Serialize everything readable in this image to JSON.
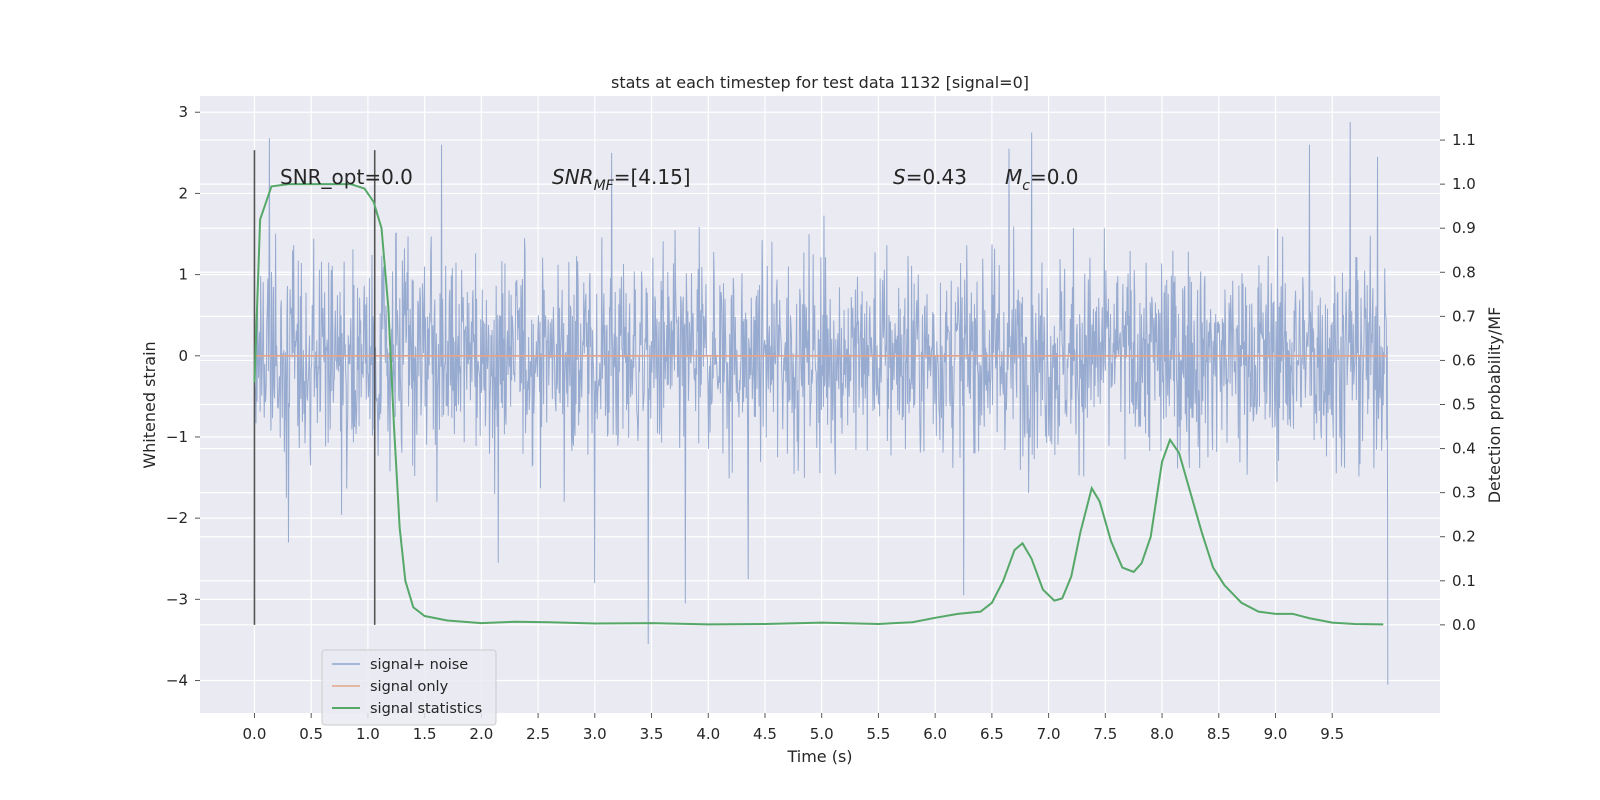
{
  "chart_data": {
    "type": "line",
    "title": "stats at each timestep for test data 1132 [signal=0]",
    "xlabel": "Time (s)",
    "ylabel": "Whitened strain",
    "y2label": "Detection probability/MF",
    "xlim": [
      -0.48,
      10.45
    ],
    "ylim": [
      -4.4,
      3.2
    ],
    "y2lim": [
      -0.2,
      1.2
    ],
    "x_ticks": [
      "0.0",
      "0.5",
      "1.0",
      "1.5",
      "2.0",
      "2.5",
      "3.0",
      "3.5",
      "4.0",
      "4.5",
      "5.0",
      "5.5",
      "6.0",
      "6.5",
      "7.0",
      "7.5",
      "8.0",
      "8.5",
      "9.0",
      "9.5"
    ],
    "y_ticks": [
      3,
      2,
      1,
      0,
      -1,
      -2,
      -3,
      -4
    ],
    "y_tick_labels": [
      "3",
      "2",
      "1",
      "0",
      "−1",
      "−2",
      "−3",
      "−4"
    ],
    "y2_ticks": [
      "1.1",
      "1.0",
      "0.9",
      "0.8",
      "0.7",
      "0.6",
      "0.5",
      "0.4",
      "0.3",
      "0.2",
      "0.1",
      "0.0"
    ],
    "grid": true,
    "legend_placement": "lower-left",
    "annotations": {
      "snr_opt": "SNR_opt=0.0",
      "snr_mf_sym": "SNR",
      "snr_mf_sub": "MF",
      "snr_mf_val": "=[4.15]",
      "s_sym": "S",
      "s_val": "=0.43",
      "mc_sym": "M",
      "mc_sub": "c",
      "mc_val": "=0.0"
    },
    "vertical_markers": [
      0.0,
      1.06
    ],
    "series": [
      {
        "name": "signal+ noise",
        "color": "#8fa4cc",
        "noise_std": 0.62,
        "x_range": [
          0.0,
          9.99
        ],
        "peaks_high": [
          [
            0.13,
            2.68
          ],
          [
            1.65,
            2.6
          ],
          [
            3.15,
            2.5
          ],
          [
            6.65,
            2.55
          ],
          [
            6.85,
            2.75
          ],
          [
            9.3,
            2.6
          ],
          [
            9.66,
            2.88
          ],
          [
            9.9,
            2.45
          ]
        ],
        "peaks_low": [
          [
            3.47,
            -3.55
          ],
          [
            3.0,
            -2.8
          ],
          [
            3.8,
            -3.05
          ],
          [
            4.35,
            -2.75
          ],
          [
            6.25,
            -2.95
          ],
          [
            9.99,
            -4.05
          ],
          [
            2.15,
            -2.55
          ],
          [
            0.3,
            -2.3
          ]
        ]
      },
      {
        "name": "signal only",
        "color": "#e4a48a",
        "value": 0.0
      },
      {
        "name": "signal statistics",
        "color": "#55a868",
        "axis": "right",
        "points": [
          [
            0.0,
            0.55
          ],
          [
            0.05,
            0.92
          ],
          [
            0.15,
            0.995
          ],
          [
            0.3,
            1.0
          ],
          [
            0.6,
            1.0
          ],
          [
            0.85,
            1.0
          ],
          [
            0.97,
            0.99
          ],
          [
            1.05,
            0.96
          ],
          [
            1.12,
            0.9
          ],
          [
            1.18,
            0.72
          ],
          [
            1.23,
            0.45
          ],
          [
            1.28,
            0.22
          ],
          [
            1.33,
            0.1
          ],
          [
            1.4,
            0.04
          ],
          [
            1.5,
            0.02
          ],
          [
            1.7,
            0.01
          ],
          [
            2.0,
            0.004
          ],
          [
            2.3,
            0.007
          ],
          [
            2.6,
            0.006
          ],
          [
            3.0,
            0.003
          ],
          [
            3.5,
            0.004
          ],
          [
            4.0,
            0.001
          ],
          [
            4.5,
            0.002
          ],
          [
            5.0,
            0.005
          ],
          [
            5.5,
            0.002
          ],
          [
            5.8,
            0.006
          ],
          [
            6.0,
            0.016
          ],
          [
            6.2,
            0.025
          ],
          [
            6.4,
            0.03
          ],
          [
            6.5,
            0.05
          ],
          [
            6.6,
            0.1
          ],
          [
            6.7,
            0.17
          ],
          [
            6.77,
            0.185
          ],
          [
            6.85,
            0.15
          ],
          [
            6.95,
            0.08
          ],
          [
            7.05,
            0.055
          ],
          [
            7.12,
            0.06
          ],
          [
            7.2,
            0.11
          ],
          [
            7.28,
            0.21
          ],
          [
            7.38,
            0.31
          ],
          [
            7.45,
            0.28
          ],
          [
            7.55,
            0.19
          ],
          [
            7.65,
            0.13
          ],
          [
            7.75,
            0.12
          ],
          [
            7.82,
            0.14
          ],
          [
            7.9,
            0.2
          ],
          [
            8.0,
            0.37
          ],
          [
            8.07,
            0.42
          ],
          [
            8.15,
            0.39
          ],
          [
            8.25,
            0.3
          ],
          [
            8.35,
            0.21
          ],
          [
            8.45,
            0.13
          ],
          [
            8.55,
            0.09
          ],
          [
            8.7,
            0.05
          ],
          [
            8.85,
            0.03
          ],
          [
            9.0,
            0.025
          ],
          [
            9.15,
            0.025
          ],
          [
            9.3,
            0.015
          ],
          [
            9.5,
            0.005
          ],
          [
            9.7,
            0.002
          ],
          [
            9.95,
            0.001
          ]
        ]
      }
    ]
  }
}
